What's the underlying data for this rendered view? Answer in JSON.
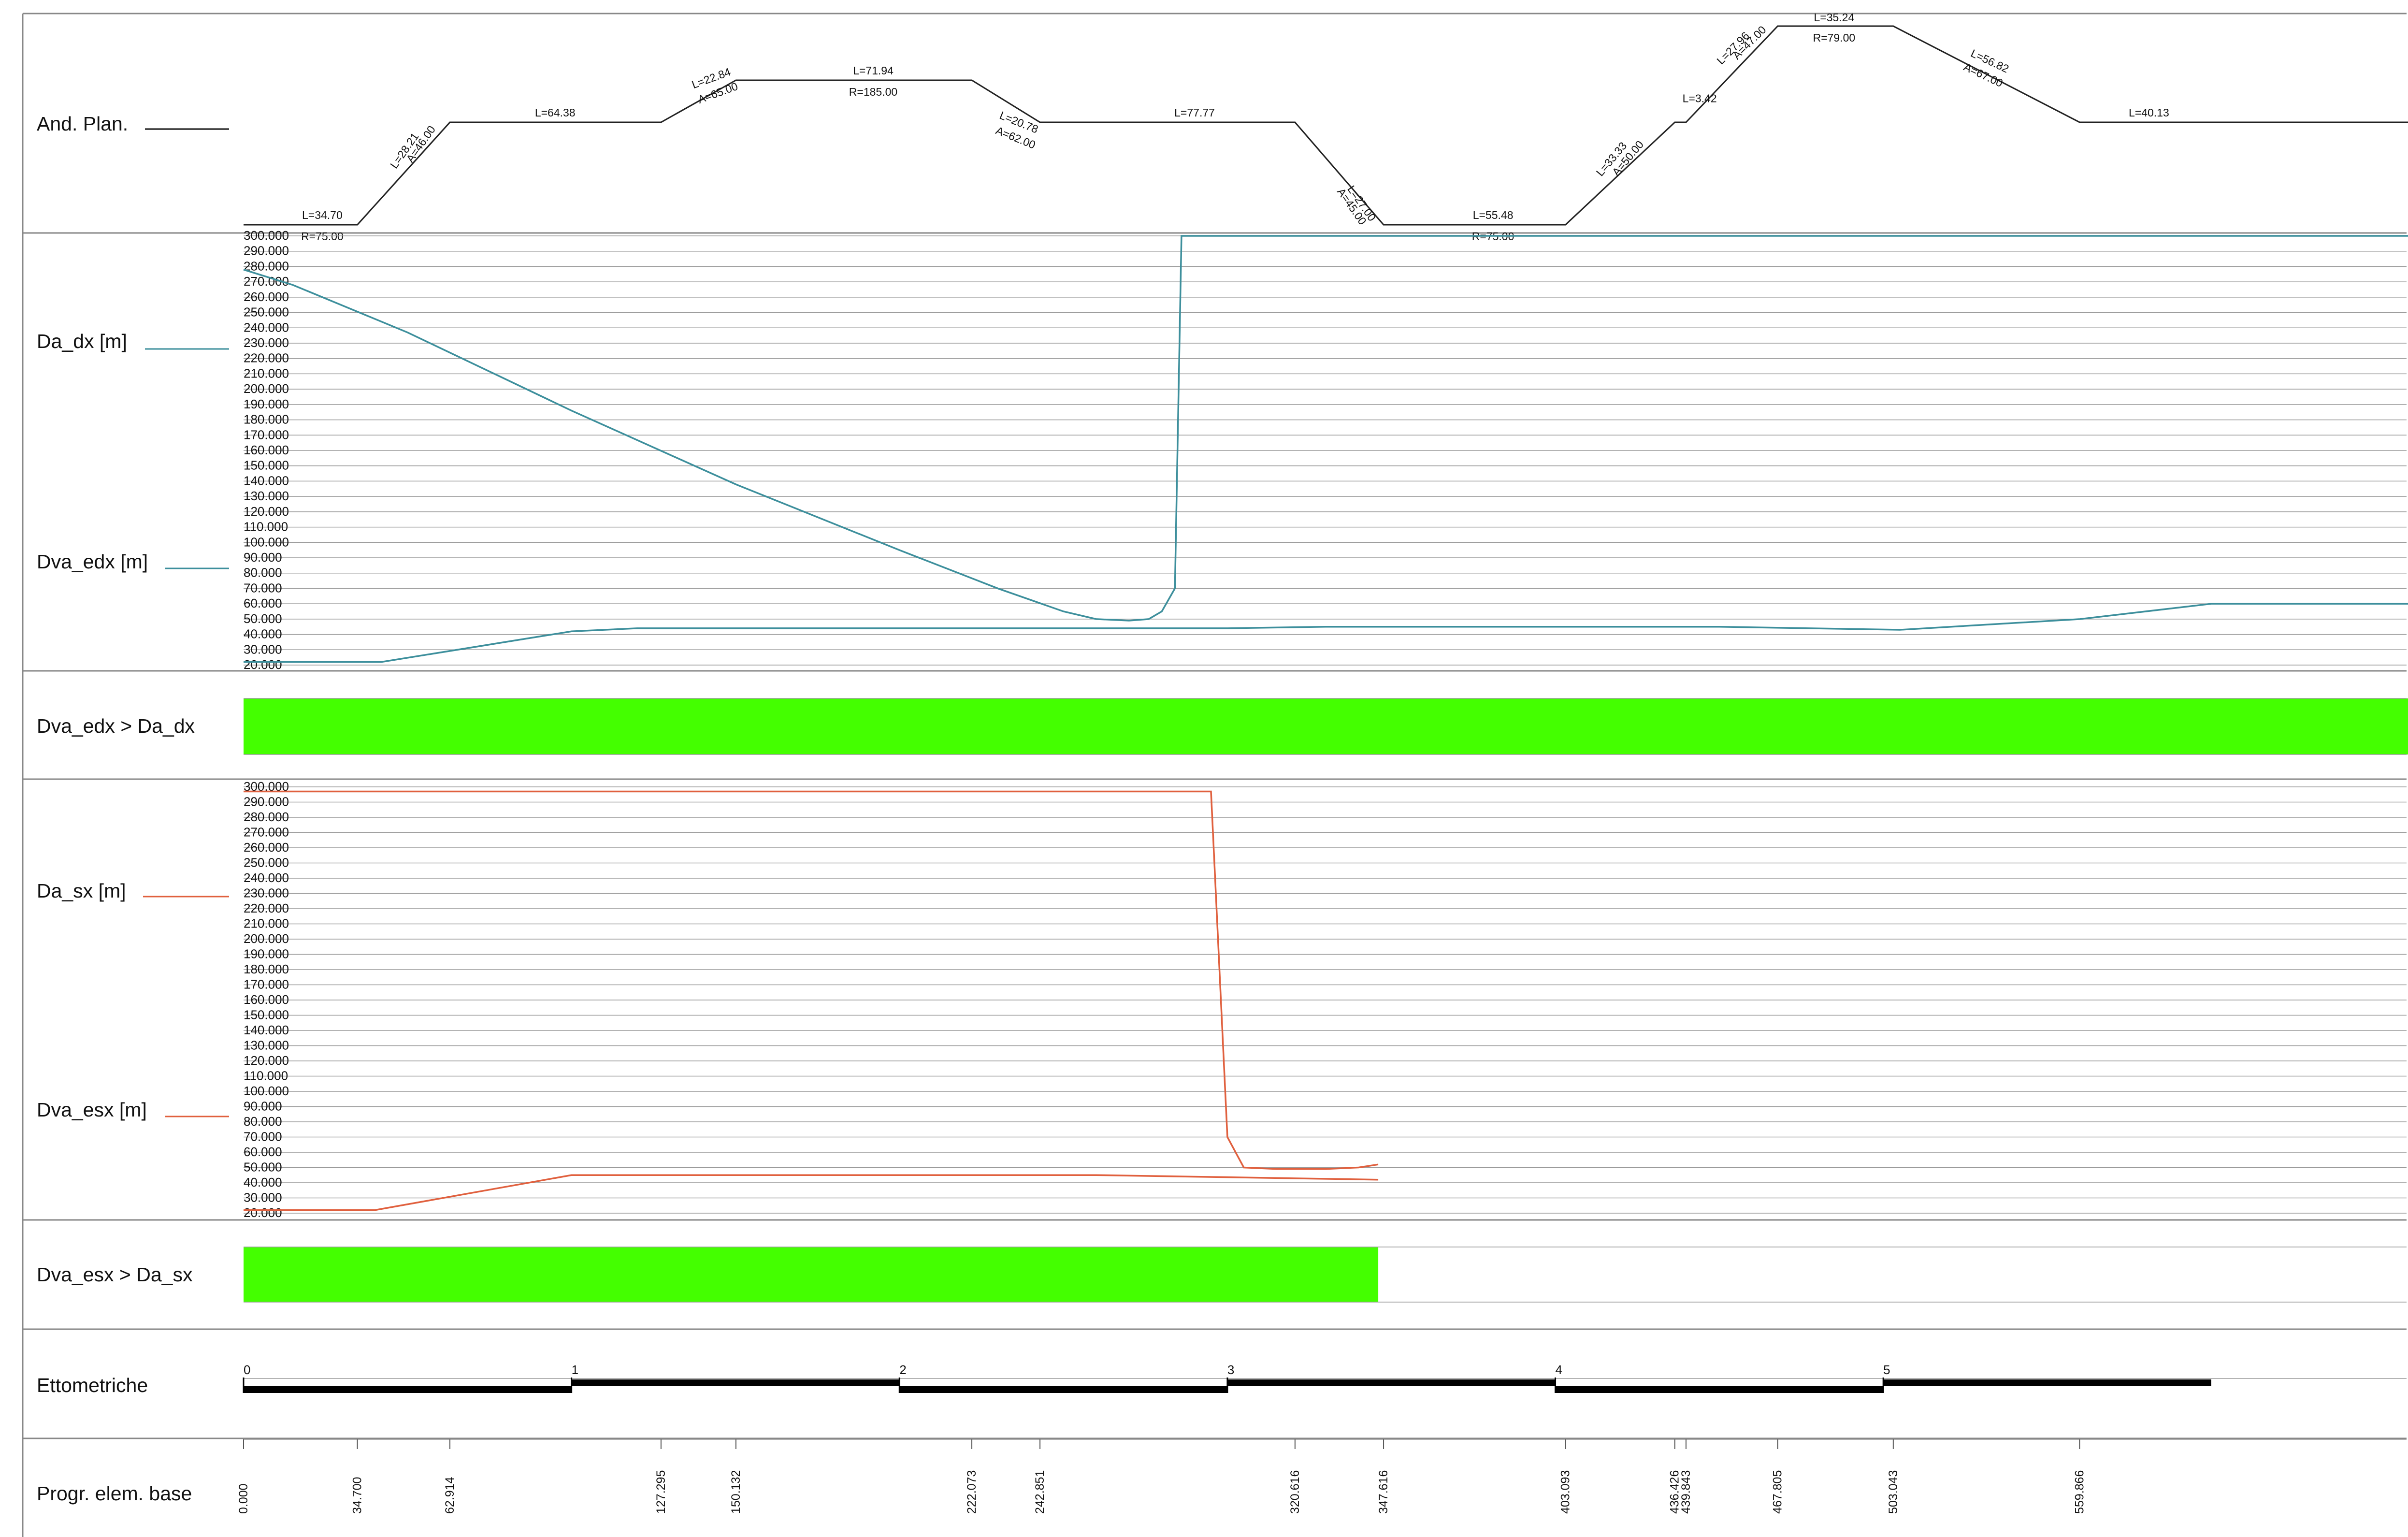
{
  "rows": {
    "planimetria": "And. Plan.",
    "da_dx": "Da_dx [m]",
    "dva_edx": "Dva_edx [m]",
    "check_dx": "Dva_edx > Da_dx",
    "da_sx": "Da_sx [m]",
    "dva_esx": "Dva_esx [m]",
    "check_sx": "Dva_esx > Da_sx",
    "ettometriche": "Ettometriche",
    "progressive": "Progr. elem. base"
  },
  "colors": {
    "dx": "#3d8f9c",
    "sx": "#e0603e",
    "ok": "#44ff00",
    "axis": "#888888",
    "text": "#111111"
  },
  "chart_data": {
    "type": "line",
    "x_range": [
      0,
      660
    ],
    "y_range": [
      20,
      300
    ],
    "y_ticks": [
      "300.000",
      "290.000",
      "280.000",
      "270.000",
      "260.000",
      "250.000",
      "240.000",
      "230.000",
      "220.000",
      "210.000",
      "200.000",
      "190.000",
      "180.000",
      "170.000",
      "160.000",
      "150.000",
      "140.000",
      "130.000",
      "120.000",
      "110.000",
      "100.000",
      "90.000",
      "80.000",
      "70.000",
      "60.000",
      "50.000",
      "40.000",
      "30.000",
      "20.000"
    ],
    "alignment": {
      "labels": [
        {
          "text": "L=34.70",
          "x": 24,
          "lev": 2,
          "dy": -12,
          "rot": 0
        },
        {
          "text": "R=75.00",
          "x": 24,
          "lev": 2,
          "dy": 32,
          "rot": 0
        },
        {
          "text": "L=28.21",
          "x": 50,
          "lev": 1,
          "dy": -34,
          "rot": -55
        },
        {
          "text": "A=46.00",
          "x": 55,
          "lev": 1,
          "dy": -10,
          "rot": -55
        },
        {
          "text": "L=64.38",
          "x": 95,
          "lev": 0,
          "dy": -12,
          "rot": 0
        },
        {
          "text": "L=22.84",
          "x": 143,
          "lev": -1,
          "dy": -24,
          "rot": -20
        },
        {
          "text": "A=65.00",
          "x": 145,
          "lev": -1,
          "dy": 14,
          "rot": -20
        },
        {
          "text": "L=71.94",
          "x": 192,
          "lev": -1,
          "dy": -12,
          "rot": 0
        },
        {
          "text": "R=185.00",
          "x": 192,
          "lev": -1,
          "dy": 32,
          "rot": 0
        },
        {
          "text": "L=20.78",
          "x": 236,
          "lev": -1,
          "dy": 36,
          "rot": 22
        },
        {
          "text": "A=62.00",
          "x": 235,
          "lev": -1,
          "dy": 72,
          "rot": 22
        },
        {
          "text": "L=77.77",
          "x": 290,
          "lev": 0,
          "dy": -12,
          "rot": 0
        },
        {
          "text": "L=27.00",
          "x": 340,
          "lev": 1,
          "dy": 20,
          "rot": 55
        },
        {
          "text": "A=45.00",
          "x": 337,
          "lev": 1,
          "dy": 50,
          "rot": 55
        },
        {
          "text": "L=55.48",
          "x": 381,
          "lev": 2,
          "dy": -12,
          "rot": 0
        },
        {
          "text": "R=75.00",
          "x": 381,
          "lev": 2,
          "dy": 32,
          "rot": 0
        },
        {
          "text": "L=33.33",
          "x": 418,
          "lev": 1,
          "dy": -36,
          "rot": -50
        },
        {
          "text": "A=50.00",
          "x": 423,
          "lev": 1,
          "dy": -6,
          "rot": -50
        },
        {
          "text": "L=3.42",
          "x": 444,
          "lev": 0,
          "dy": -12,
          "rot": 0
        },
        {
          "text": "L=27.96",
          "x": 455,
          "lev": -1,
          "dy": -40,
          "rot": -45
        },
        {
          "text": "A=47.00",
          "x": 460,
          "lev": -1,
          "dy": -16,
          "rot": -45
        },
        {
          "text": "L=35.24",
          "x": 485,
          "lev": -2,
          "dy": -10,
          "rot": 0
        },
        {
          "text": "R=79.00",
          "x": 485,
          "lev": -2,
          "dy": 32,
          "rot": 0
        },
        {
          "text": "L=56.82",
          "x": 532,
          "lev": -1,
          "dy": -22,
          "rot": 25
        },
        {
          "text": "A=67.00",
          "x": 530,
          "lev": -1,
          "dy": 14,
          "rot": 25
        },
        {
          "text": "L=40.13",
          "x": 581,
          "lev": 0,
          "dy": -12,
          "rot": 0
        }
      ]
    },
    "series": [
      {
        "name": "Da_dx",
        "panel": "dx",
        "x": [
          0,
          15,
          50,
          100,
          150,
          200,
          230,
          250,
          260,
          270,
          276,
          280,
          284,
          286,
          660
        ],
        "y": [
          278,
          268,
          237,
          186,
          138,
          95,
          70,
          55,
          50,
          49,
          50,
          55,
          70,
          300,
          300
        ]
      },
      {
        "name": "Dva_edx",
        "panel": "dx",
        "x": [
          0,
          42,
          100,
          120,
          200,
          300,
          330,
          400,
          450,
          505,
          560,
          600,
          660
        ],
        "y": [
          22,
          22,
          42,
          44,
          44,
          44,
          45,
          45,
          45,
          43,
          50,
          60,
          60
        ]
      },
      {
        "name": "Da_sx",
        "panel": "sx",
        "x": [
          0,
          295,
          300,
          305,
          315,
          330,
          340,
          346
        ],
        "y": [
          297,
          297,
          70,
          50,
          49,
          49,
          50,
          52
        ]
      },
      {
        "name": "Dva_esx",
        "panel": "sx",
        "x": [
          0,
          40,
          100,
          200,
          260,
          346
        ],
        "y": [
          22,
          22,
          45,
          45,
          45,
          42
        ]
      }
    ],
    "check_dx_ok": [
      0,
      660
    ],
    "check_sx_ok": [
      0,
      346
    ],
    "hectometers": [
      "0",
      "1",
      "2",
      "3",
      "4",
      "5"
    ],
    "progressive": [
      {
        "label": "0.000",
        "x": 0
      },
      {
        "label": "34.700",
        "x": 34.7
      },
      {
        "label": "62.914",
        "x": 62.914
      },
      {
        "label": "127.295",
        "x": 127.295
      },
      {
        "label": "150.132",
        "x": 150.132
      },
      {
        "label": "222.073",
        "x": 222.073
      },
      {
        "label": "242.851",
        "x": 242.851
      },
      {
        "label": "320.616",
        "x": 320.616
      },
      {
        "label": "347.616",
        "x": 347.616
      },
      {
        "label": "403.093",
        "x": 403.093
      },
      {
        "label": "436.426",
        "x": 436.426
      },
      {
        "label": "439.843",
        "x": 439.843
      },
      {
        "label": "467.805",
        "x": 467.805
      },
      {
        "label": "503.043",
        "x": 503.043
      },
      {
        "label": "559.866",
        "x": 559.866
      }
    ]
  }
}
